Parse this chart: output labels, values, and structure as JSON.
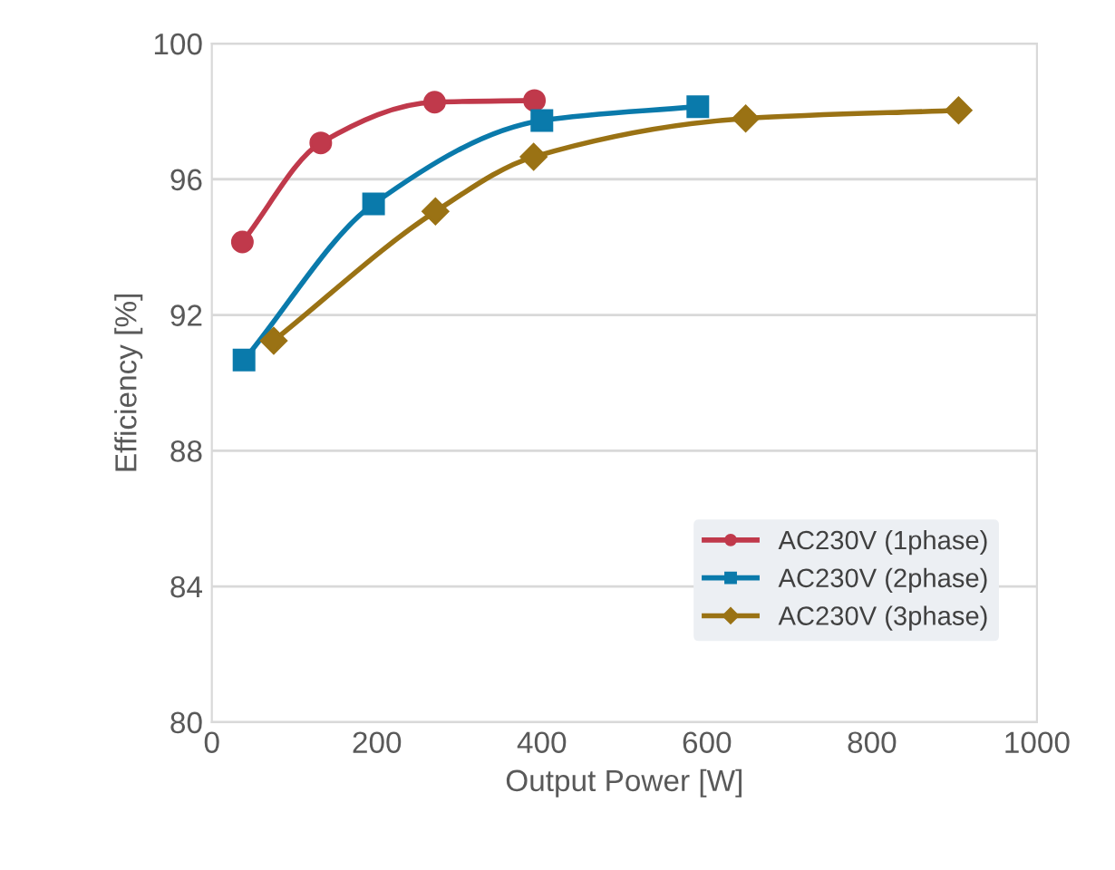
{
  "chart_data": {
    "type": "line",
    "xlabel": "Output Power [W]",
    "ylabel": "Efficiency [%]",
    "xlim": [
      0,
      1000
    ],
    "xticks": [
      0,
      200,
      400,
      600,
      800,
      1000
    ],
    "ylim": [
      80,
      100
    ],
    "yticks": [
      80,
      84,
      88,
      92,
      96,
      100
    ],
    "grid": "y",
    "legend": "bottom right",
    "line_style": "solid",
    "series": [
      {
        "name": "AC230V (1phase)",
        "color": "#c0394b",
        "marker": "circle",
        "x": [
          37,
          132,
          270,
          391
        ],
        "values": [
          94.15,
          97.07,
          98.27,
          98.32
        ]
      },
      {
        "name": "AC230V (2phase)",
        "color": "#0a7aab",
        "marker": "square",
        "x": [
          39,
          196,
          400,
          589
        ],
        "values": [
          90.67,
          95.27,
          97.73,
          98.14
        ]
      },
      {
        "name": "AC230V (3phase)",
        "color": "#9a7214",
        "marker": "diamond",
        "x": [
          75,
          271,
          390,
          647,
          905
        ],
        "values": [
          91.24,
          95.05,
          96.66,
          97.79,
          98.03
        ]
      }
    ]
  }
}
